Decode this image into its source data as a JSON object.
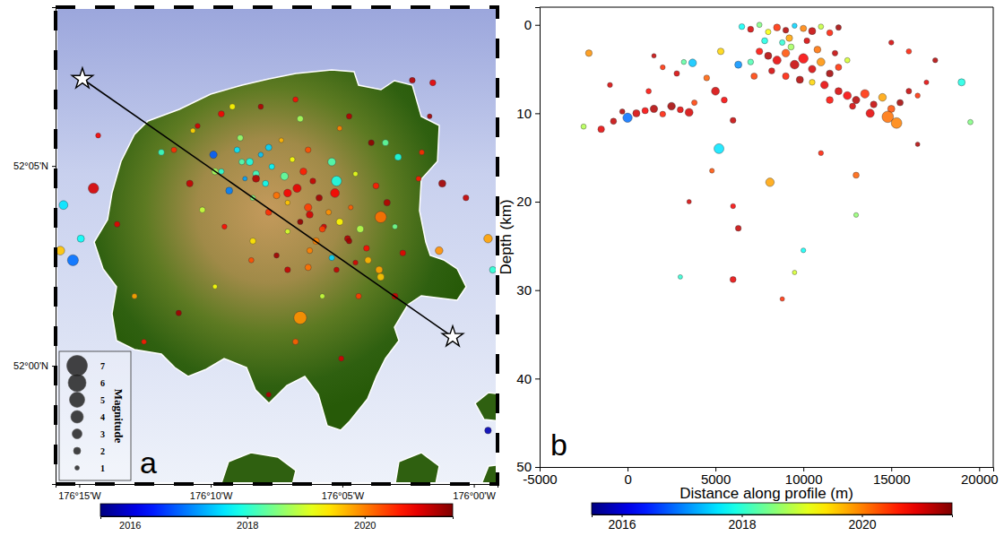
{
  "chart_data": [
    {
      "type": "scatter",
      "panel_label": "a",
      "legend": "lower left",
      "xlim": [
        -176.265,
        -175.985
      ],
      "ylim": [
        51.9507,
        52.1495
      ],
      "xticks": [
        {
          "value": -176.25,
          "label": "176°15'W"
        },
        {
          "value": -176.1667,
          "label": "176°10'W"
        },
        {
          "value": -176.0833,
          "label": "176°05'W"
        },
        {
          "value": -176.0,
          "label": "176°00'W"
        }
      ],
      "yticks": [
        {
          "value": 52.0833,
          "label": "52°05'N"
        },
        {
          "value": 52.0,
          "label": "52°00'N"
        }
      ],
      "colorbar": {
        "range": [
          2015.5,
          2021.5
        ],
        "ticks": [
          2016,
          2018,
          2020
        ]
      },
      "size_legend": {
        "title": "Magnitude",
        "values": [
          7,
          6,
          5,
          4,
          3,
          2,
          1
        ]
      },
      "profile": {
        "x": [
          -176.248,
          -176.0134
        ],
        "y": [
          52.1196,
          52.012
        ]
      },
      "x": [
        -176.15,
        -176.142,
        -176.135,
        -176.138,
        -176.128,
        -176.145,
        -176.12,
        -176.132,
        -176.115,
        -176.108,
        -176.112,
        -176.102,
        -176.098,
        -176.105,
        -176.118,
        -176.125,
        -176.092,
        -176.088,
        -176.095,
        -176.085,
        -176.078,
        -176.08,
        -176.072,
        -176.068,
        -176.11,
        -176.1,
        -176.118,
        -176.13,
        -176.14,
        -176.155,
        -176.16,
        -176.165,
        -176.148,
        -176.122,
        -176.105,
        -176.09,
        -176.075,
        -176.062,
        -176.055,
        -176.05,
        -176.045,
        -176.06,
        -176.075,
        -176.09,
        -176.105,
        -176.125,
        -176.14,
        -176.158,
        -176.172,
        -176.18,
        -176.19,
        -176.178,
        -176.16,
        -176.135,
        -176.11,
        -176.085,
        -176.065,
        -176.048,
        -176.035,
        -176.059,
        -176.11,
        -176.087,
        -176.241,
        -176.26,
        -176.254,
        -176.262,
        -176.249,
        -175.991,
        -176.02,
        -176.022,
        -175.988,
        -175.991,
        -176.039,
        -176.026,
        -176.059,
        -176.05,
        -176.073,
        -176.096,
        -176.118,
        -176.141,
        -176.164,
        -176.187,
        -176.209,
        -176.084,
        -176.113,
        -176.13,
        -176.215,
        -176.226,
        -176.198,
        -176.175,
        -176.153,
        -176.113,
        -176.079,
        -176.056,
        -176.033,
        -176.005,
        -176.238,
        -176.028,
        -176.164,
        -176.147,
        -176.13,
        -176.138,
        -176.118,
        -176.104,
        -176.096,
        -176.079,
        -176.067,
        -176.087,
        -176.104
      ],
      "y": [
        52.09,
        52.085,
        52.088,
        52.08,
        52.083,
        52.078,
        52.079,
        52.076,
        52.086,
        52.081,
        52.074,
        52.077,
        52.07,
        52.066,
        52.068,
        52.071,
        52.064,
        52.072,
        52.058,
        52.06,
        52.066,
        52.053,
        52.057,
        52.049,
        52.06,
        52.052,
        52.056,
        52.064,
        52.07,
        52.073,
        52.081,
        52.088,
        52.095,
        52.094,
        52.09,
        52.085,
        52.08,
        52.075,
        52.068,
        52.058,
        52.047,
        52.04,
        52.043,
        52.045,
        52.041,
        52.046,
        52.052,
        52.058,
        52.065,
        52.076,
        52.09,
        52.098,
        52.105,
        52.108,
        52.103,
        52.099,
        52.093,
        52.087,
        52.078,
        52.062,
        52.02,
        52.077,
        52.074,
        52.067,
        52.044,
        52.048,
        52.053,
        52.053,
        52.076,
        52.048,
        52.04,
        51.973,
        52.119,
        52.118,
        52.037,
        52.029,
        52.029,
        52.029,
        52.04,
        52.044,
        52.033,
        52.022,
        52.01,
        52.003,
        52.01,
        51.988,
        52.029,
        52.059,
        52.089,
        52.1,
        52.108,
        52.111,
        52.104,
        52.093,
        52.089,
        52.07,
        52.096,
        52.104,
        52.081,
        52.085,
        52.091,
        52.078,
        52.072,
        52.063,
        52.057,
        52.052,
        52.044,
        52.04,
        52.048
      ],
      "color_values": [
        2017.6,
        2017.9,
        2017.4,
        2018.1,
        2017.7,
        2017.2,
        2018.3,
        2017.8,
        2019.2,
        2020.6,
        2020.9,
        2021.1,
        2021.3,
        2020.4,
        2019.6,
        2020.1,
        2019.9,
        2020.8,
        2021.0,
        2019.3,
        2020.2,
        2021.2,
        2018.8,
        2020.7,
        2021.4,
        2020.0,
        2019.0,
        2020.5,
        2018.5,
        2017.0,
        2018.0,
        2016.8,
        2018.6,
        2019.7,
        2020.3,
        2018.2,
        2019.1,
        2020.6,
        2021.2,
        2018.4,
        2020.9,
        2019.8,
        2021.0,
        2017.5,
        2020.1,
        2021.3,
        2019.4,
        2020.7,
        2018.9,
        2021.1,
        2020.5,
        2019.5,
        2020.8,
        2021.2,
        2018.7,
        2020.0,
        2021.4,
        2017.9,
        2020.6,
        2020.1,
        2019.9,
        2017.9,
        2021.0,
        2017.6,
        2016.9,
        2019.6,
        2017.8,
        2019.8,
        2021.3,
        2019.9,
        2018.0,
        2015.8,
        2021.2,
        2020.9,
        2019.6,
        2021.0,
        2020.4,
        2018.9,
        2021.1,
        2020.3,
        2019.2,
        2021.3,
        2020.6,
        2021.0,
        2020.2,
        2021.2,
        2019.8,
        2020.9,
        2018.1,
        2021.0,
        2019.3,
        2020.7,
        2021.2,
        2018.3,
        2020.5,
        2021.1,
        2020.8,
        2021.3,
        2018.7,
        2018.2,
        2017.5,
        2021.2,
        2020.8,
        2021.0,
        2020.4,
        2021.3,
        2019.7,
        2021.1,
        2020.0
      ],
      "size": [
        1.5,
        2.0,
        1.2,
        1.8,
        1.4,
        1.0,
        2.2,
        1.6,
        1.3,
        1.9,
        2.4,
        1.5,
        1.7,
        2.1,
        1.2,
        1.8,
        1.4,
        2.6,
        1.3,
        1.9,
        1.1,
        1.6,
        2.0,
        1.5,
        1.4,
        1.8,
        1.2,
        1.7,
        1.3,
        1.9,
        1.4,
        2.1,
        1.6,
        1.1,
        1.5,
        2.3,
        1.2,
        1.6,
        1.8,
        1.3,
        1.5,
        2.0,
        1.2,
        1.4,
        1.7,
        1.3,
        1.6,
        1.2,
        1.5,
        1.8,
        1.4,
        1.2,
        1.6,
        1.3,
        1.7,
        1.2,
        1.5,
        1.9,
        1.3,
        3.6,
        4.1,
        3.1,
        3.2,
        2.6,
        3.4,
        2.6,
        2.0,
        2.5,
        2.0,
        2.2,
        1.8,
        1.8,
        1.5,
        1.6,
        2.0,
        1.6,
        1.4,
        1.2,
        1.5,
        1.3,
        1.1,
        1.4,
        1.2,
        1.3,
        1.5,
        1.2,
        1.3,
        1.4,
        1.6,
        1.2,
        1.5,
        1.3,
        1.4,
        1.7,
        1.3,
        1.5,
        1.2,
        1.1,
        1.8,
        1.5,
        1.7,
        2.0,
        2.2,
        1.9,
        1.6,
        1.4,
        1.8,
        1.3,
        1.5
      ]
    },
    {
      "type": "scatter",
      "panel_label": "b",
      "xlabel": "Distance along profile (m)",
      "ylabel": "Depth (km)",
      "xlim": [
        -5000,
        20800
      ],
      "ylim": [
        50,
        -2
      ],
      "xticks": [
        -5000,
        0,
        5000,
        10000,
        15000,
        20000
      ],
      "yticks": [
        0,
        10,
        20,
        30,
        40,
        50
      ],
      "colorbar": {
        "range": [
          2015.5,
          2021.5
        ],
        "ticks": [
          2016,
          2018,
          2020
        ]
      },
      "x": [
        -1500,
        -800,
        0,
        500,
        1000,
        1500,
        2000,
        2500,
        3000,
        3500,
        3800,
        -300,
        -2200,
        -1000,
        1200,
        1500,
        2000,
        2800,
        3200,
        3700,
        6300,
        5300,
        4500,
        5000,
        5500,
        6000,
        5200,
        6500,
        7000,
        7500,
        8000,
        8500,
        9000,
        9500,
        10000,
        10500,
        11000,
        11500,
        12000,
        9200,
        10200,
        8800,
        7800,
        7500,
        8000,
        8500,
        9000,
        9500,
        10000,
        10500,
        11000,
        11500,
        12000,
        8200,
        9000,
        9800,
        10500,
        11200,
        9300,
        10800,
        11800,
        12500,
        7000,
        7200,
        12000,
        12500,
        13000,
        13500,
        14000,
        14500,
        15000,
        15500,
        13800,
        14800,
        15300,
        12800,
        11500,
        16000,
        16500,
        17000,
        19000,
        17500,
        16000,
        15000,
        19500,
        8100,
        13000,
        6000,
        6300,
        6000,
        10000,
        9500,
        8800,
        13000,
        3500,
        -2500,
        11000,
        4800,
        16500,
        3000
      ],
      "y": [
        11.8,
        10.9,
        10.5,
        10.0,
        9.7,
        9.5,
        10.1,
        9.2,
        9.6,
        9.9,
        8.8,
        9.8,
        3.2,
        6.8,
        7.5,
        3.5,
        4.8,
        5.5,
        4.2,
        4.3,
        4.5,
        3.0,
        6.0,
        7.5,
        8.5,
        10.8,
        14.0,
        0.2,
        0.5,
        0.0,
        0.8,
        0.3,
        0.6,
        0.1,
        0.4,
        0.7,
        0.2,
        0.9,
        0.3,
        1.5,
        1.8,
        2.0,
        1.8,
        3.0,
        3.5,
        4.0,
        3.2,
        4.5,
        3.8,
        5.0,
        4.2,
        5.5,
        4.8,
        5.2,
        5.8,
        6.2,
        6.5,
        6.8,
        2.5,
        2.8,
        3.2,
        4.0,
        4.2,
        5.8,
        7.5,
        8.0,
        8.5,
        7.8,
        9.0,
        8.2,
        9.5,
        8.8,
        10.0,
        10.4,
        11.1,
        9.2,
        8.5,
        7.5,
        8.0,
        6.5,
        6.5,
        4.0,
        3.0,
        2.0,
        11.0,
        17.8,
        17.0,
        20.5,
        23.0,
        28.8,
        25.5,
        28.0,
        31.0,
        21.5,
        20.0,
        11.5,
        14.5,
        16.5,
        13.5,
        28.5
      ],
      "color_values": [
        2020.9,
        2021.1,
        2016.9,
        2021.0,
        2020.8,
        2021.2,
        2020.6,
        2021.3,
        2020.9,
        2021.0,
        2020.4,
        2021.2,
        2019.9,
        2021.0,
        2020.7,
        2021.1,
        2020.5,
        2021.0,
        2018.3,
        2017.4,
        2017.1,
        2019.5,
        2020.2,
        2021.0,
        2020.8,
        2021.1,
        2017.6,
        2017.8,
        2021.0,
        2018.5,
        2019.2,
        2020.5,
        2021.2,
        2017.5,
        2020.0,
        2021.1,
        2018.9,
        2020.6,
        2021.3,
        2019.8,
        2021.0,
        2018.0,
        2017.9,
        2020.7,
        2021.2,
        2020.9,
        2020.3,
        2021.1,
        2020.8,
        2021.0,
        2019.9,
        2021.3,
        2020.5,
        2021.0,
        2020.6,
        2021.2,
        2019.5,
        2020.9,
        2018.7,
        2020.1,
        2021.1,
        2019.0,
        2018.2,
        2020.4,
        2021.0,
        2020.8,
        2021.2,
        2020.5,
        2021.1,
        2019.8,
        2020.3,
        2021.3,
        2020.9,
        2020.1,
        2020.0,
        2021.0,
        2020.7,
        2021.1,
        2020.5,
        2020.9,
        2017.9,
        2021.2,
        2020.6,
        2021.0,
        2018.5,
        2019.8,
        2020.2,
        2020.8,
        2021.1,
        2020.9,
        2017.8,
        2019.0,
        2020.5,
        2018.6,
        2021.0,
        2018.8,
        2020.6,
        2020.3,
        2021.2,
        2018.0
      ],
      "size": [
        1.8,
        1.6,
        2.8,
        2.0,
        1.7,
        2.1,
        1.5,
        2.2,
        1.6,
        2.3,
        1.4,
        1.3,
        1.8,
        1.2,
        1.3,
        1.0,
        1.2,
        1.4,
        1.2,
        2.2,
        2.0,
        1.8,
        1.5,
        2.3,
        1.6,
        1.5,
        3.0,
        1.5,
        1.6,
        1.3,
        1.4,
        1.9,
        1.5,
        1.2,
        1.7,
        2.0,
        1.3,
        1.6,
        1.4,
        1.8,
        1.5,
        1.4,
        1.6,
        1.8,
        2.0,
        2.4,
        2.2,
        2.6,
        2.9,
        2.1,
        2.3,
        1.9,
        1.7,
        1.6,
        1.8,
        2.0,
        1.5,
        2.2,
        1.6,
        1.9,
        1.4,
        1.3,
        1.5,
        1.7,
        2.0,
        2.3,
        2.1,
        2.5,
        1.8,
        2.2,
        2.0,
        1.7,
        2.4,
        3.6,
        3.3,
        1.6,
        1.9,
        1.4,
        1.2,
        1.1,
        2.0,
        1.2,
        1.3,
        1.2,
        1.3,
        2.5,
        1.6,
        1.2,
        1.5,
        1.6,
        1.1,
        1.0,
        1.0,
        1.1,
        1.0,
        1.3,
        1.2,
        1.1,
        1.0,
        1.0
      ]
    }
  ]
}
